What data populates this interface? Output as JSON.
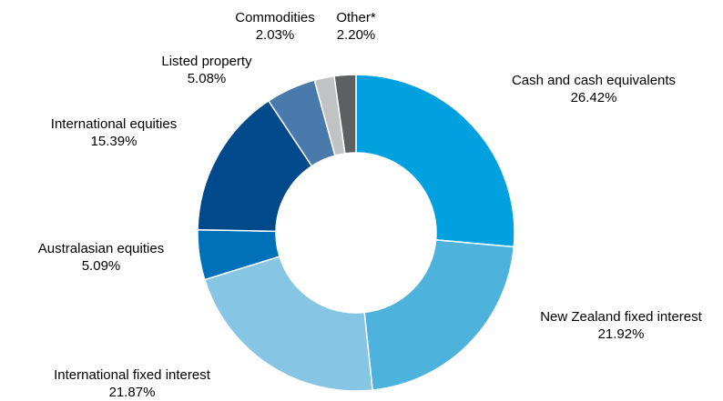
{
  "chart_data": {
    "type": "pie",
    "variant": "donut",
    "start": "12 o'clock",
    "direction": "clockwise",
    "slices": [
      {
        "label": "Cash and cash equivalents",
        "value": 26.42,
        "value_label": "26.42%",
        "color": "#00a1de"
      },
      {
        "label": "New Zealand fixed interest",
        "value": 21.92,
        "value_label": "21.92%",
        "color": "#4db3dd"
      },
      {
        "label": "International fixed interest",
        "value": 21.87,
        "value_label": "21.87%",
        "color": "#86c5e3"
      },
      {
        "label": "Australasian equities",
        "value": 5.09,
        "value_label": "5.09%",
        "color": "#0070b8"
      },
      {
        "label": "International equities",
        "value": 15.39,
        "value_label": "15.39%",
        "color": "#004a8c"
      },
      {
        "label": "Listed property",
        "value": 5.08,
        "value_label": "5.08%",
        "color": "#4a7aab"
      },
      {
        "label": "Commodities",
        "value": 2.03,
        "value_label": "2.03%",
        "color": "#c0c2c4"
      },
      {
        "label": "Other*",
        "value": 2.2,
        "value_label": "2.20%",
        "color": "#5e5f61"
      }
    ],
    "legend": "none",
    "labels": "outside"
  }
}
